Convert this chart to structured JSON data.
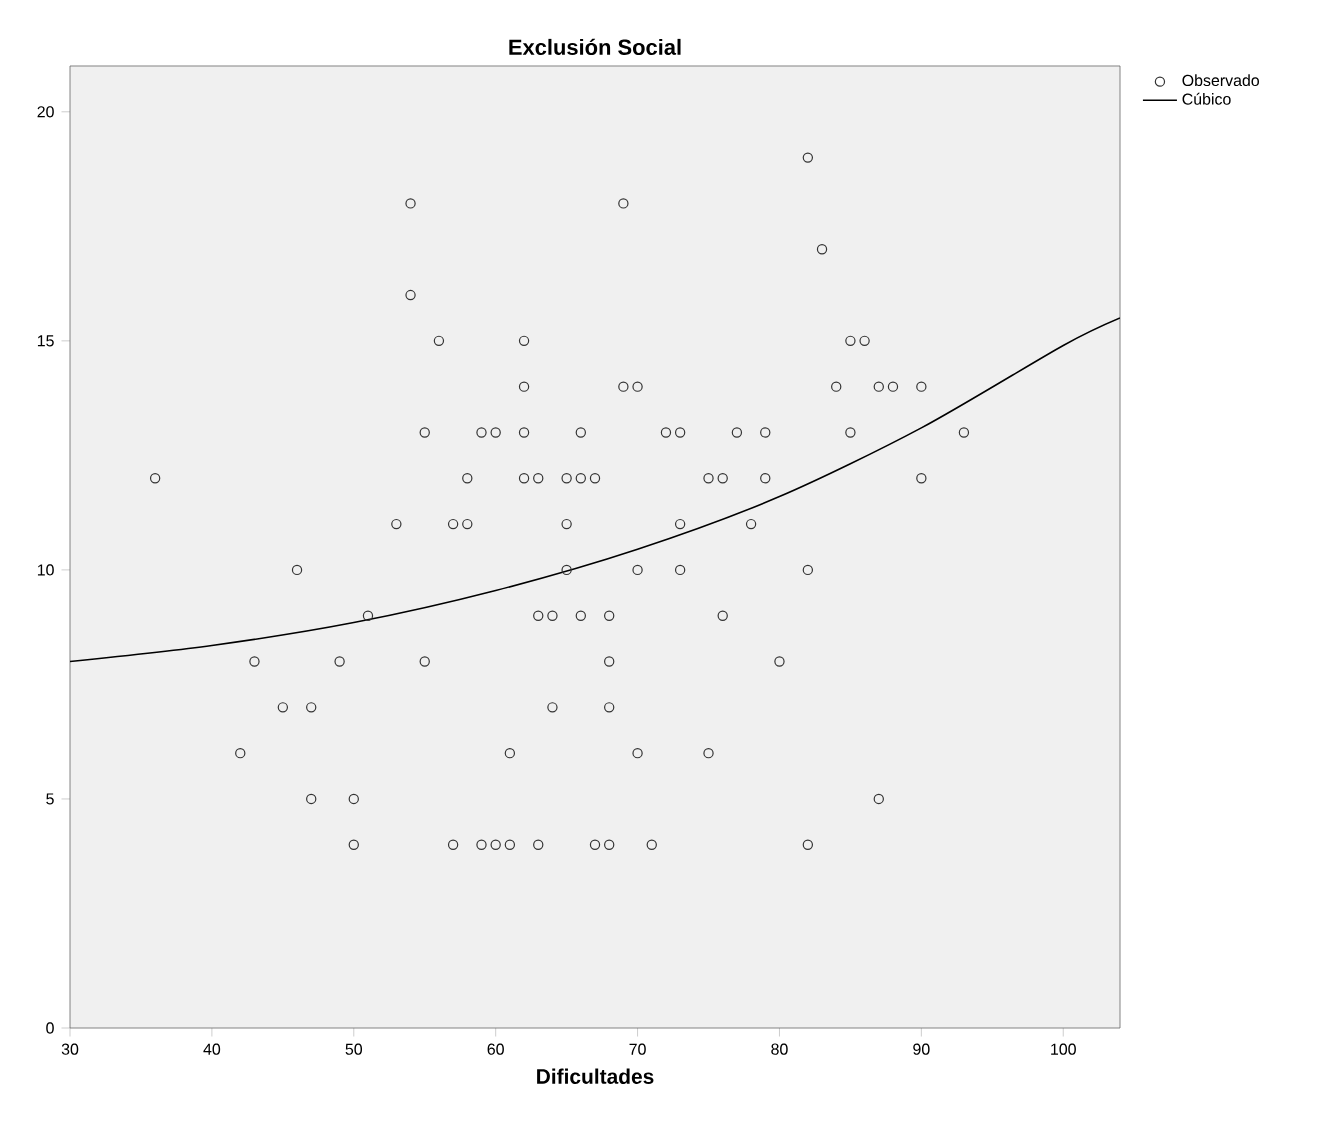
{
  "chart_data": {
    "type": "scatter",
    "title": "Exclusión Social",
    "xlabel": "Dificultades",
    "xlim": [
      30,
      104
    ],
    "ylim": [
      0,
      21
    ],
    "xticks": [
      30,
      40,
      50,
      60,
      70,
      80,
      90,
      100
    ],
    "yticks": [
      0,
      5,
      10,
      15,
      20
    ],
    "grid": false,
    "legend": "top right",
    "series": [
      {
        "name": "Observado",
        "marker": "circle",
        "color": "#333333",
        "x": [
          36,
          42,
          43,
          45,
          46,
          47,
          47,
          49,
          50,
          50,
          51,
          53,
          54,
          54,
          55,
          55,
          56,
          57,
          57,
          58,
          58,
          59,
          59,
          60,
          60,
          61,
          61,
          62,
          62,
          62,
          62,
          63,
          63,
          63,
          64,
          64,
          65,
          65,
          65,
          66,
          66,
          66,
          67,
          67,
          68,
          68,
          68,
          68,
          69,
          69,
          70,
          70,
          70,
          71,
          72,
          73,
          73,
          73,
          75,
          75,
          76,
          76,
          77,
          78,
          79,
          79,
          80,
          82,
          82,
          82,
          83,
          84,
          85,
          85,
          86,
          87,
          87,
          88,
          90,
          90,
          93
        ],
        "values": [
          12,
          6,
          8,
          7,
          10,
          7,
          5,
          8,
          5,
          4,
          9,
          11,
          18,
          16,
          13,
          8,
          15,
          11,
          4,
          12,
          11,
          13,
          4,
          13,
          4,
          6,
          4,
          15,
          14,
          13,
          12,
          12,
          9,
          4,
          9,
          7,
          12,
          11,
          10,
          13,
          12,
          9,
          12,
          4,
          9,
          8,
          7,
          4,
          18,
          14,
          14,
          10,
          6,
          4,
          13,
          13,
          11,
          10,
          12,
          6,
          12,
          9,
          13,
          11,
          13,
          12,
          8,
          19,
          10,
          4,
          17,
          14,
          15,
          13,
          15,
          14,
          5,
          14,
          14,
          12,
          13
        ]
      },
      {
        "name": "Cúbico",
        "type": "line",
        "color": "#000000",
        "line_style": "solid",
        "marker": "none",
        "x": [
          30,
          40,
          50,
          60,
          70,
          80,
          90,
          100,
          104
        ],
        "values": [
          8.0,
          8.35,
          8.85,
          9.55,
          10.45,
          11.6,
          13.1,
          14.9,
          15.5
        ]
      }
    ]
  }
}
